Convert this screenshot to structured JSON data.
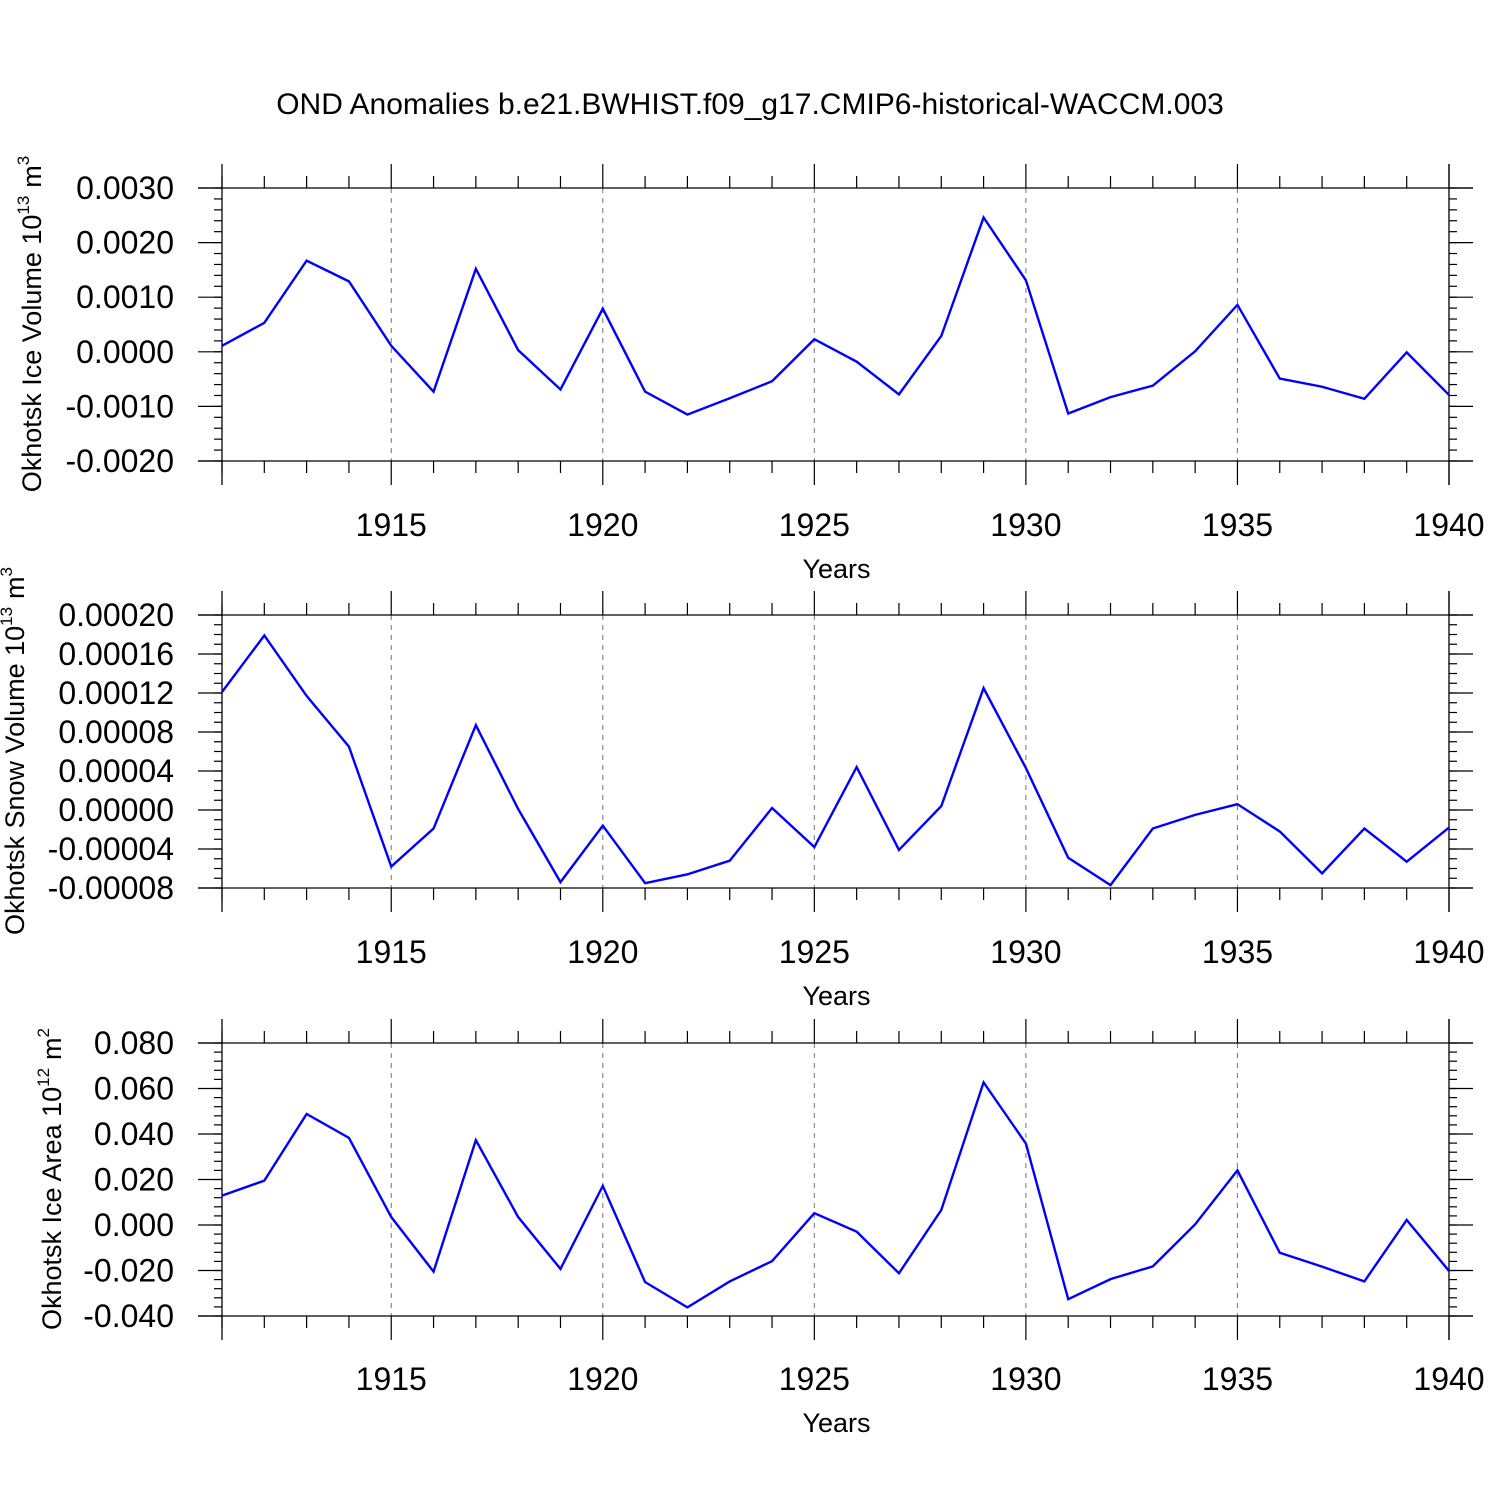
{
  "title": "OND Anomalies b.e21.BWHIST.f09_g17.CMIP6-historical-WACCM.003",
  "colors": {
    "line": "#0000ff",
    "grid": "#808080",
    "axis": "#000000"
  },
  "chart_data": [
    {
      "type": "line",
      "name": "ice-volume",
      "ylabel_main": "Okhotsk Ice Volume 10",
      "ylabel_exp": "13",
      "ylabel_unit": "m",
      "ylabel_unit_exp": "3",
      "xlabel": "Years",
      "xlim": [
        1911,
        1940
      ],
      "ylim": [
        -0.002,
        0.003
      ],
      "yticks": [
        -0.002,
        -0.001,
        0.0,
        0.001,
        0.002,
        0.003
      ],
      "ytick_labels": [
        "-0.0020",
        "-0.0010",
        "0.0000",
        "0.0010",
        "0.0020",
        "0.0030"
      ],
      "yminor_step": 0.0002,
      "xticks": [
        1915,
        1920,
        1925,
        1930,
        1935,
        1940
      ],
      "xtick_labels": [
        "1915",
        "1920",
        "1925",
        "1930",
        "1935",
        "1940"
      ],
      "grid": "vertical-dashed-at-major-x",
      "x": [
        1911,
        1912,
        1913,
        1914,
        1915,
        1916,
        1917,
        1918,
        1919,
        1920,
        1921,
        1922,
        1923,
        1924,
        1925,
        1926,
        1927,
        1928,
        1929,
        1930,
        1931,
        1932,
        1933,
        1934,
        1935,
        1936,
        1937,
        1938,
        1939,
        1940
      ],
      "y": [
        0.00011,
        0.00053,
        0.00167,
        0.00129,
        0.00011,
        -0.00073,
        0.00152,
        3e-05,
        -0.00069,
        0.00079,
        -0.00073,
        -0.00115,
        -0.00085,
        -0.00054,
        0.00023,
        -0.00018,
        -0.00078,
        0.00029,
        0.00246,
        0.00131,
        -0.00113,
        -0.00083,
        -0.00062,
        1e-05,
        0.00086,
        -0.00049,
        -0.00064,
        -0.00086,
        -1e-05,
        -0.00079
      ]
    },
    {
      "type": "line",
      "name": "snow-volume",
      "ylabel_main": "Okhotsk Snow Volume 10",
      "ylabel_exp": "13",
      "ylabel_unit": "m",
      "ylabel_unit_exp": "3",
      "xlabel": "Years",
      "xlim": [
        1911,
        1940
      ],
      "ylim": [
        -8e-05,
        0.0002
      ],
      "yticks": [
        -8e-05,
        -4e-05,
        0.0,
        4e-05,
        8e-05,
        0.00012,
        0.00016,
        0.0002
      ],
      "ytick_labels": [
        "-0.00008",
        "-0.00004",
        "0.00000",
        "0.00004",
        "0.00008",
        "0.00012",
        "0.00016",
        "0.00020"
      ],
      "yminor_step": 1e-05,
      "xticks": [
        1915,
        1920,
        1925,
        1930,
        1935,
        1940
      ],
      "xtick_labels": [
        "1915",
        "1920",
        "1925",
        "1930",
        "1935",
        "1940"
      ],
      "grid": "vertical-dashed-at-major-x",
      "x": [
        1911,
        1912,
        1913,
        1914,
        1915,
        1916,
        1917,
        1918,
        1919,
        1920,
        1921,
        1922,
        1923,
        1924,
        1925,
        1926,
        1927,
        1928,
        1929,
        1930,
        1931,
        1932,
        1933,
        1934,
        1935,
        1936,
        1937,
        1938,
        1939,
        1940
      ],
      "y": [
        0.000121,
        0.000179,
        0.000117,
        6.5e-05,
        -5.8e-05,
        -1.9e-05,
        8.7e-05,
        1e-06,
        -7.4e-05,
        -1.6e-05,
        -7.5e-05,
        -6.6e-05,
        -5.2e-05,
        2e-06,
        -3.8e-05,
        4.4e-05,
        -4.1e-05,
        4e-06,
        0.000125,
        4.3e-05,
        -4.9e-05,
        -7.7e-05,
        -1.9e-05,
        -5e-06,
        6e-06,
        -2.2e-05,
        -6.5e-05,
        -1.9e-05,
        -5.3e-05,
        -1.8e-05
      ]
    },
    {
      "type": "line",
      "name": "ice-area",
      "ylabel_main": "Okhotsk Ice Area 10",
      "ylabel_exp": "12",
      "ylabel_unit": "m",
      "ylabel_unit_exp": "2",
      "xlabel": "Years",
      "xlim": [
        1911,
        1940
      ],
      "ylim": [
        -0.04,
        0.08
      ],
      "yticks": [
        -0.04,
        -0.02,
        0.0,
        0.02,
        0.04,
        0.06,
        0.08
      ],
      "ytick_labels": [
        "-0.040",
        "-0.020",
        "0.000",
        "0.020",
        "0.040",
        "0.060",
        "0.080"
      ],
      "yminor_step": 0.004,
      "xticks": [
        1915,
        1920,
        1925,
        1930,
        1935,
        1940
      ],
      "xtick_labels": [
        "1915",
        "1920",
        "1925",
        "1930",
        "1935",
        "1940"
      ],
      "grid": "vertical-dashed-at-major-x",
      "x": [
        1911,
        1912,
        1913,
        1914,
        1915,
        1916,
        1917,
        1918,
        1919,
        1920,
        1921,
        1922,
        1923,
        1924,
        1925,
        1926,
        1927,
        1928,
        1929,
        1930,
        1931,
        1932,
        1933,
        1934,
        1935,
        1936,
        1937,
        1938,
        1939,
        1940
      ],
      "y": [
        0.0129,
        0.0195,
        0.0488,
        0.0383,
        0.0035,
        -0.0205,
        0.0373,
        0.0035,
        -0.0193,
        0.0172,
        -0.0251,
        -0.0362,
        -0.0248,
        -0.0159,
        0.0052,
        -0.0029,
        -0.0212,
        0.0066,
        0.0627,
        0.0358,
        -0.0326,
        -0.0238,
        -0.0182,
        0.0003,
        0.024,
        -0.0122,
        -0.0183,
        -0.0248,
        0.0022,
        -0.0202
      ]
    }
  ]
}
